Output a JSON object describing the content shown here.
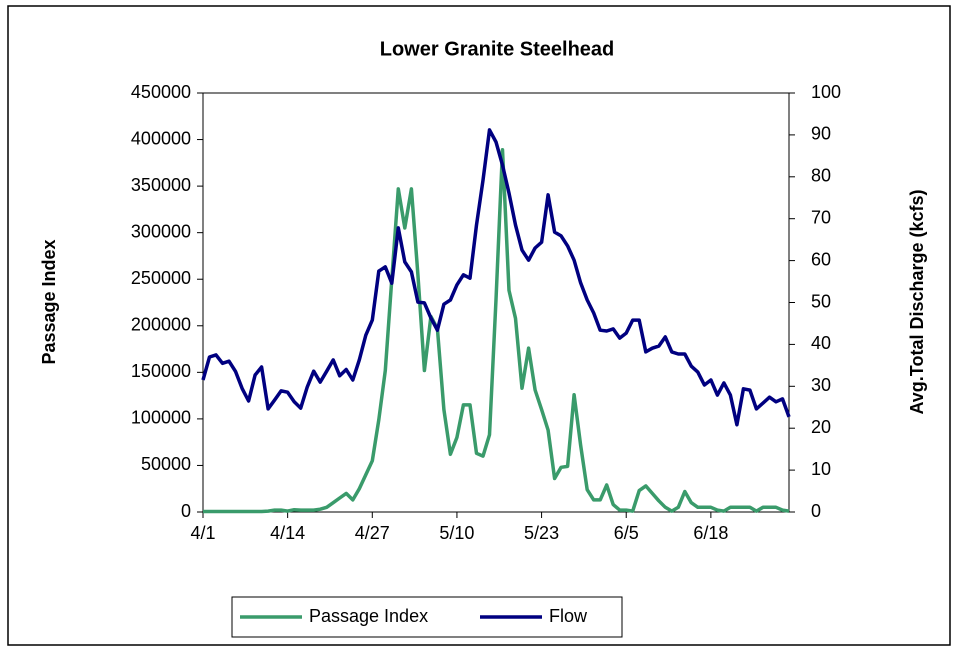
{
  "chart_data": {
    "type": "line",
    "title": "Lower Granite Steelhead",
    "ylabel": "Passage Index",
    "y2label": "Avg.Total Discharge (kcfs)",
    "categories": [
      "4/1",
      null,
      null,
      null,
      null,
      null,
      null,
      null,
      null,
      null,
      null,
      null,
      null,
      "4/14",
      null,
      null,
      null,
      null,
      null,
      null,
      null,
      null,
      null,
      null,
      null,
      null,
      "4/27",
      null,
      null,
      null,
      null,
      null,
      null,
      null,
      null,
      null,
      null,
      null,
      null,
      "5/10",
      null,
      null,
      null,
      null,
      null,
      null,
      null,
      null,
      null,
      null,
      null,
      null,
      "5/23",
      null,
      null,
      null,
      null,
      null,
      null,
      null,
      null,
      null,
      null,
      null,
      null,
      "6/5",
      null,
      null,
      null,
      null,
      null,
      null,
      null,
      null,
      null,
      null,
      null,
      null,
      "6/18",
      null,
      null,
      null,
      null,
      null,
      null,
      null,
      null,
      null,
      null,
      null,
      null
    ],
    "series": [
      {
        "name": "Passage Index",
        "color": "#3a9b6b",
        "values": [
          500,
          500,
          500,
          500,
          500,
          500,
          500,
          500,
          500,
          500,
          1000,
          2000,
          2000,
          1000,
          2500,
          2000,
          2000,
          2000,
          3000,
          5000,
          10000,
          15000,
          20000,
          13000,
          25000,
          40000,
          55000,
          99000,
          152000,
          250000,
          347000,
          305000,
          347000,
          255000,
          152000,
          210000,
          197000,
          110000,
          62000,
          80000,
          115000,
          115000,
          63000,
          60000,
          83000,
          228000,
          389000,
          238000,
          208000,
          133000,
          176000,
          131000,
          110000,
          88000,
          36000,
          48000,
          49000,
          126000,
          72000,
          24000,
          13000,
          13000,
          29000,
          8000,
          2000,
          2000,
          1000,
          23000,
          28000,
          20000,
          12000,
          5000,
          1000,
          5000,
          22000,
          10000,
          5000,
          5000,
          5000,
          2000,
          1000,
          5000,
          5000,
          5000,
          5000,
          1000,
          5000,
          5000,
          5000,
          2000,
          1000
        ]
      },
      {
        "name": "Flow",
        "color": "#000080",
        "axis": "y2",
        "values": [
          31.5,
          37,
          37.5,
          35.5,
          36,
          33.5,
          29.5,
          26.5,
          32.7,
          34.6,
          24.6,
          26.7,
          28.9,
          28.6,
          26.3,
          24.8,
          29.8,
          33.6,
          31,
          33.6,
          36.3,
          32.5,
          34,
          31.5,
          36.3,
          42.2,
          45.8,
          57.5,
          58.5,
          54.6,
          67.8,
          59.7,
          57.3,
          50.1,
          49.9,
          46.3,
          43.4,
          49.6,
          50.6,
          54.2,
          56.6,
          55.8,
          68.5,
          79.2,
          91.2,
          88.3,
          82.8,
          76.1,
          68.5,
          62.5,
          60.1,
          63,
          64.4,
          75.7,
          66.8,
          65.9,
          63.5,
          60.1,
          54.7,
          50.6,
          47.5,
          43.4,
          43.2,
          43.7,
          41.5,
          42.7,
          45.8,
          45.8,
          38.2,
          39.1,
          39.6,
          41.8,
          38.2,
          37.7,
          37.7,
          34.8,
          33.4,
          30.3,
          31.5,
          27.9,
          30.8,
          27.9,
          20.8,
          29.4,
          29.1,
          24.6,
          26,
          27.4,
          26.3,
          27,
          22.7
        ]
      }
    ],
    "ylim": [
      0,
      450000
    ],
    "yticks": [
      0,
      50000,
      100000,
      150000,
      200000,
      250000,
      300000,
      350000,
      400000,
      450000
    ],
    "y2lim": [
      0,
      100
    ],
    "y2ticks": [
      0,
      10,
      20,
      30,
      40,
      50,
      60,
      70,
      80,
      90,
      100
    ],
    "legend": "bottom"
  }
}
